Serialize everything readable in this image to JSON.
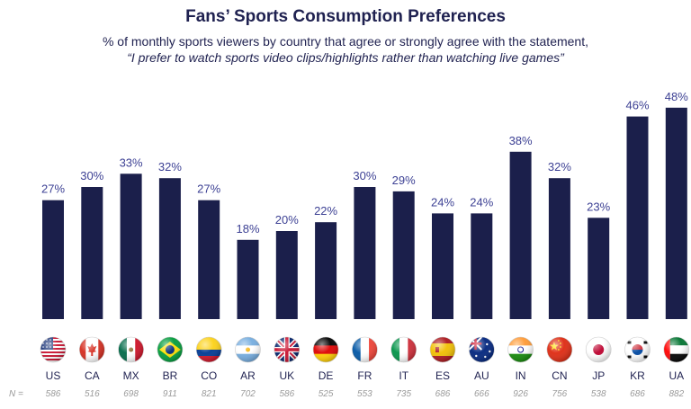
{
  "chart_data": {
    "type": "bar",
    "title": "Fans’ Sports Consumption Preferences",
    "subtitle": "% of monthly sports viewers by country that agree or strongly agree with the statement,",
    "statement": "“I prefer to watch sports video clips/highlights rather than watching live games”",
    "categories": [
      "US",
      "CA",
      "MX",
      "BR",
      "CO",
      "AR",
      "UK",
      "DE",
      "FR",
      "IT",
      "ES",
      "AU",
      "IN",
      "CN",
      "JP",
      "KR",
      "UA"
    ],
    "values": [
      27,
      30,
      33,
      32,
      27,
      18,
      20,
      22,
      30,
      29,
      24,
      24,
      38,
      32,
      23,
      46,
      48
    ],
    "value_labels": [
      "27%",
      "30%",
      "33%",
      "32%",
      "27%",
      "18%",
      "20%",
      "22%",
      "30%",
      "29%",
      "24%",
      "24%",
      "38%",
      "32%",
      "23%",
      "46%",
      "48%"
    ],
    "n_label": "N =",
    "n_values": [
      "586",
      "516",
      "698",
      "911",
      "821",
      "702",
      "586",
      "525",
      "553",
      "735",
      "686",
      "666",
      "926",
      "756",
      "538",
      "686",
      "882"
    ],
    "ylim": [
      0,
      50
    ],
    "flag_icons": [
      "us-flag-icon",
      "ca-flag-icon",
      "mx-flag-icon",
      "br-flag-icon",
      "co-flag-icon",
      "ar-flag-icon",
      "uk-flag-icon",
      "de-flag-icon",
      "fr-flag-icon",
      "it-flag-icon",
      "es-flag-icon",
      "au-flag-icon",
      "in-flag-icon",
      "cn-flag-icon",
      "jp-flag-icon",
      "kr-flag-icon",
      "ua-flag-icon"
    ],
    "colors": {
      "bar": "#1b1f4b",
      "value_label": "#3d4194",
      "n_text": "#9a9a9a"
    }
  }
}
